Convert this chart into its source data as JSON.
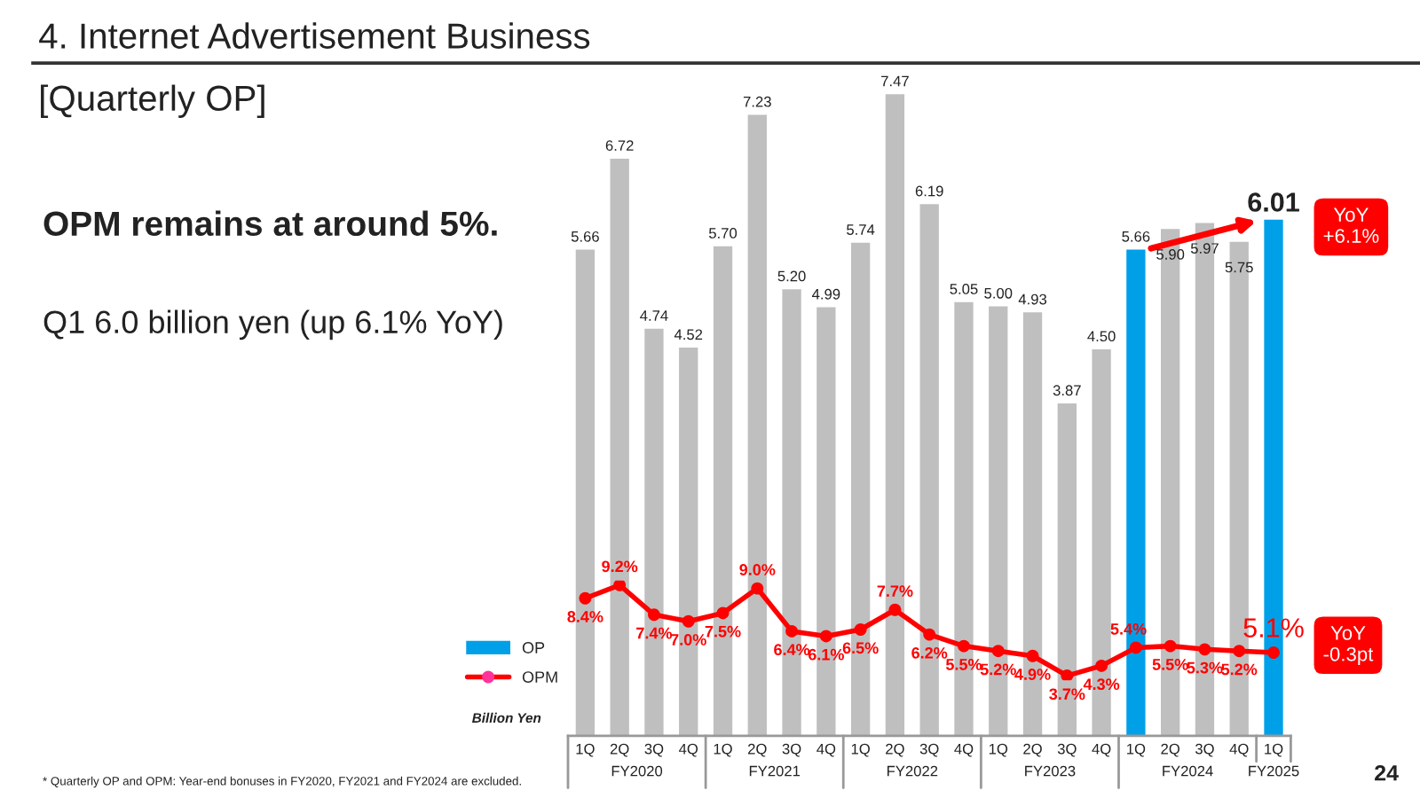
{
  "chart_data": {
    "type": "bar",
    "title": "4. Internet Advertisement Business",
    "subtitle": "[Quarterly OP]",
    "categories": [
      "1Q",
      "2Q",
      "3Q",
      "4Q",
      "1Q",
      "2Q",
      "3Q",
      "4Q",
      "1Q",
      "2Q",
      "3Q",
      "4Q",
      "1Q",
      "2Q",
      "3Q",
      "4Q",
      "1Q",
      "2Q",
      "3Q",
      "4Q",
      "1Q"
    ],
    "series": [
      {
        "name": "OP",
        "color": "#00a0e9",
        "colors": [
          "#bfbfbf",
          "#bfbfbf",
          "#bfbfbf",
          "#bfbfbf",
          "#bfbfbf",
          "#bfbfbf",
          "#bfbfbf",
          "#bfbfbf",
          "#bfbfbf",
          "#bfbfbf",
          "#bfbfbf",
          "#bfbfbf",
          "#bfbfbf",
          "#bfbfbf",
          "#bfbfbf",
          "#bfbfbf",
          "#00a0e9",
          "#bfbfbf",
          "#bfbfbf",
          "#bfbfbf",
          "#00a0e9"
        ],
        "values": [
          5.66,
          6.72,
          4.74,
          4.52,
          5.7,
          7.23,
          5.2,
          4.99,
          5.74,
          7.47,
          6.19,
          5.05,
          5.0,
          4.93,
          3.87,
          4.5,
          5.66,
          5.9,
          5.97,
          5.75,
          6.01
        ],
        "value_labels": [
          "5.66",
          "6.72",
          "4.74",
          "4.52",
          "5.70",
          "7.23",
          "5.20",
          "4.99",
          "5.74",
          "7.47",
          "6.19",
          "5.05",
          "5.00",
          "4.93",
          "3.87",
          "4.50",
          "5.66",
          "5.90",
          "5.97",
          "5.75",
          "6.01"
        ]
      },
      {
        "name": "OPM",
        "type": "line",
        "axis": "y2",
        "color": "#ff0000",
        "values": [
          8.4,
          9.2,
          7.4,
          7.0,
          7.5,
          9.0,
          6.4,
          6.1,
          6.5,
          7.7,
          6.2,
          5.5,
          5.2,
          4.9,
          3.7,
          4.3,
          5.4,
          5.5,
          5.3,
          5.2,
          5.1
        ],
        "value_labels": [
          "8.4%",
          "9.2%",
          "7.4%",
          "7.0%",
          "7.5%",
          "9.0%",
          "6.4%",
          "6.1%",
          "6.5%",
          "7.7%",
          "6.2%",
          "5.5%",
          "5.2%",
          "4.9%",
          "3.7%",
          "4.3%",
          "5.4%",
          "5.5%",
          "5.3%",
          "5.2%",
          "5.1%"
        ]
      }
    ],
    "tick_labels": "x",
    "legend": "bottom left",
    "marker": "circle",
    "line_style": "solid",
    "annotations": [
      "OPM remains at around 5%.",
      "Q1 6.0 billion yen (up 6.1% YoY)",
      "YoY\n+6.1%",
      "YoY\n-0.3pt",
      "Billion Yen",
      "* Quarterly OP and OPM: Year-end bonuses in FY2020, FY2021 and FY2024 are excluded.",
      "24",
      "FY2020",
      "FY2021",
      "FY2022",
      "FY2023",
      "FY2024",
      "FY2025"
    ]
  }
}
